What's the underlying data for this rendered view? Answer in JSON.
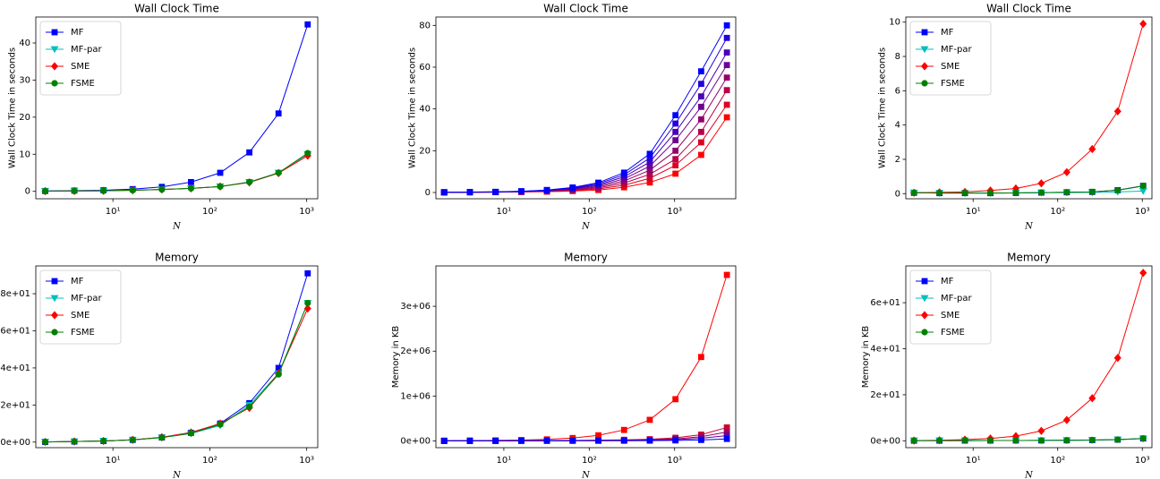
{
  "chart_data": [
    {
      "type": "line",
      "title": "Wall Clock Time",
      "xlabel": "N",
      "ylabel": "Wall Clock Time in seconds",
      "xscale": "log",
      "legend": "upper left",
      "x": [
        2,
        4,
        8,
        16,
        32,
        64,
        128,
        256,
        512,
        1024
      ],
      "xlim": [
        1.6,
        1300
      ],
      "xticks": [
        {
          "value": 10,
          "label": "10¹"
        },
        {
          "value": 100,
          "label": "10²"
        },
        {
          "value": 1000,
          "label": "10³"
        }
      ],
      "ylim": [
        -2,
        47
      ],
      "yticks": [
        0,
        10,
        20,
        30,
        40
      ],
      "series": [
        {
          "name": "MF",
          "color": "#0000ff",
          "marker": "square",
          "values": [
            0.1,
            0.2,
            0.3,
            0.6,
            1.2,
            2.5,
            5,
            10.5,
            21,
            45
          ]
        },
        {
          "name": "MF-par",
          "color": "#00bfbf",
          "marker": "tri-down",
          "values": [
            0.05,
            0.1,
            0.15,
            0.3,
            0.5,
            0.8,
            1.3,
            2.5,
            5,
            10
          ]
        },
        {
          "name": "SME",
          "color": "#ff0000",
          "marker": "diamond",
          "values": [
            0.05,
            0.1,
            0.15,
            0.3,
            0.5,
            0.8,
            1.3,
            2.4,
            4.9,
            9.6
          ]
        },
        {
          "name": "FSME",
          "color": "#008000",
          "marker": "circle",
          "values": [
            0.05,
            0.1,
            0.15,
            0.3,
            0.5,
            0.8,
            1.3,
            2.5,
            5,
            10.3
          ]
        }
      ]
    },
    {
      "type": "line",
      "title": "Wall Clock Time",
      "xlabel": "N",
      "ylabel": "Wall Clock Time in seconds",
      "xscale": "log",
      "x": [
        2,
        4,
        8,
        16,
        32,
        64,
        128,
        256,
        512,
        1024,
        2048,
        4096
      ],
      "xlim": [
        1.6,
        5200
      ],
      "xticks": [
        {
          "value": 10,
          "label": "10¹"
        },
        {
          "value": 100,
          "label": "10²"
        },
        {
          "value": 1000,
          "label": "10³"
        }
      ],
      "ylim": [
        -3,
        84
      ],
      "yticks": [
        0,
        20,
        40,
        60,
        80
      ],
      "series": [
        {
          "color": "#ff0000",
          "marker": "square",
          "values": [
            0.05,
            0.1,
            0.15,
            0.25,
            0.4,
            0.7,
            1.2,
            2.5,
            4.8,
            9,
            18,
            36
          ]
        },
        {
          "color": "#db0024",
          "marker": "square",
          "values": [
            0.06,
            0.11,
            0.17,
            0.3,
            0.51,
            0.94,
            1.7,
            3.5,
            6.8,
            13,
            24,
            42
          ]
        },
        {
          "color": "#b60049",
          "marker": "square",
          "values": [
            0.06,
            0.13,
            0.19,
            0.35,
            0.63,
            1.19,
            2.2,
            4.5,
            8.7,
            16,
            29,
            49
          ]
        },
        {
          "color": "#92006d",
          "marker": "square",
          "values": [
            0.07,
            0.14,
            0.21,
            0.4,
            0.74,
            1.43,
            2.7,
            5.5,
            10.7,
            20,
            35,
            55
          ]
        },
        {
          "color": "#6d0092",
          "marker": "square",
          "values": [
            0.08,
            0.16,
            0.24,
            0.45,
            0.86,
            1.67,
            3.2,
            6.5,
            12.6,
            25,
            41,
            61
          ]
        },
        {
          "color": "#4900b6",
          "marker": "square",
          "values": [
            0.09,
            0.17,
            0.26,
            0.5,
            0.97,
            1.91,
            3.7,
            7.5,
            14.6,
            29,
            46,
            67
          ]
        },
        {
          "color": "#2400db",
          "marker": "square",
          "values": [
            0.09,
            0.19,
            0.28,
            0.55,
            1.09,
            2.16,
            4.2,
            8.5,
            16.5,
            33,
            52,
            74
          ]
        },
        {
          "color": "#0000ff",
          "marker": "square",
          "values": [
            0.1,
            0.2,
            0.3,
            0.6,
            1.2,
            2.4,
            4.7,
            9.5,
            18.5,
            37,
            58,
            80
          ]
        }
      ]
    },
    {
      "type": "line",
      "title": "Wall Clock Time",
      "xlabel": "N",
      "ylabel": "Wall Clock Time in seconds",
      "xscale": "log",
      "legend": "upper left",
      "x": [
        2,
        4,
        8,
        16,
        32,
        64,
        128,
        256,
        512,
        1024
      ],
      "xlim": [
        1.6,
        1300
      ],
      "xticks": [
        {
          "value": 10,
          "label": "10¹"
        },
        {
          "value": 100,
          "label": "10²"
        },
        {
          "value": 1000,
          "label": "10³"
        }
      ],
      "ylim": [
        -0.3,
        10.3
      ],
      "yticks": [
        0,
        2,
        4,
        6,
        8,
        10
      ],
      "series": [
        {
          "name": "MF",
          "color": "#0000ff",
          "marker": "square",
          "values": [
            0.05,
            0.03,
            0.03,
            0.03,
            0.04,
            0.06,
            0.08,
            0.1,
            0.2,
            0.45
          ]
        },
        {
          "name": "MF-par",
          "color": "#00bfbf",
          "marker": "tri-down",
          "values": [
            0.05,
            0.03,
            0.03,
            0.03,
            0.04,
            0.05,
            0.06,
            0.07,
            0.1,
            0.15
          ]
        },
        {
          "name": "SME",
          "color": "#ff0000",
          "marker": "diamond",
          "values": [
            0.05,
            0.07,
            0.1,
            0.18,
            0.3,
            0.6,
            1.25,
            2.6,
            4.8,
            9.9
          ]
        },
        {
          "name": "FSME",
          "color": "#008000",
          "marker": "circle",
          "values": [
            0.05,
            0.03,
            0.03,
            0.03,
            0.04,
            0.06,
            0.08,
            0.1,
            0.2,
            0.45
          ]
        }
      ]
    },
    {
      "type": "line",
      "title": "Memory",
      "xlabel": "N",
      "ylabel": "Memory in KB",
      "xscale": "log",
      "legend": "upper left",
      "x": [
        2,
        4,
        8,
        16,
        32,
        64,
        128,
        256,
        512,
        1024
      ],
      "xlim": [
        1.6,
        1300
      ],
      "xticks": [
        {
          "value": 10,
          "label": "10¹"
        },
        {
          "value": 100,
          "label": "10²"
        },
        {
          "value": 1000,
          "label": "10³"
        }
      ],
      "ylim": [
        -3,
        95
      ],
      "yticks": [
        {
          "value": 0,
          "label": "0e+00"
        },
        {
          "value": 20,
          "label": "2e+01"
        },
        {
          "value": 40,
          "label": "4e+01"
        },
        {
          "value": 60,
          "label": "6e+01"
        },
        {
          "value": 80,
          "label": "8e+01"
        }
      ],
      "series": [
        {
          "name": "MF",
          "color": "#0000ff",
          "marker": "square",
          "values": [
            0.1,
            0.3,
            0.6,
            1.2,
            2.5,
            5,
            10,
            21,
            40,
            91
          ]
        },
        {
          "name": "MF-par",
          "color": "#00bfbf",
          "marker": "tri-down",
          "values": [
            0.1,
            0.3,
            0.6,
            1.2,
            2.4,
            4.6,
            9,
            20,
            37,
            75
          ]
        },
        {
          "name": "SME",
          "color": "#ff0000",
          "marker": "diamond",
          "values": [
            0.1,
            0.3,
            0.6,
            1.2,
            2.6,
            5.2,
            10,
            18.5,
            37,
            72
          ]
        },
        {
          "name": "FSME",
          "color": "#008000",
          "marker": "circle",
          "values": [
            0.1,
            0.3,
            0.6,
            1.2,
            2.4,
            4.8,
            9.5,
            19,
            36.5,
            75
          ]
        }
      ]
    },
    {
      "type": "line",
      "title": "Memory",
      "xlabel": "N",
      "ylabel": "Memory in KB",
      "xscale": "log",
      "x": [
        2,
        4,
        8,
        16,
        32,
        64,
        128,
        256,
        512,
        1024,
        2048,
        4096
      ],
      "xlim": [
        1.6,
        5200
      ],
      "xticks": [
        {
          "value": 10,
          "label": "10¹"
        },
        {
          "value": 100,
          "label": "10²"
        },
        {
          "value": 1000,
          "label": "10³"
        }
      ],
      "ylim": [
        -150000,
        3900000
      ],
      "yticks": [
        {
          "value": 0,
          "label": "0e+00"
        },
        {
          "value": 1000000,
          "label": "1e+06"
        },
        {
          "value": 2000000,
          "label": "2e+06"
        },
        {
          "value": 3000000,
          "label": "3e+06"
        }
      ],
      "series": [
        {
          "color": "#ff0000",
          "marker": "square",
          "values": [
            5000,
            8000,
            12000,
            20000,
            35000,
            65000,
            125000,
            245000,
            470000,
            930000,
            1870000,
            3700000
          ]
        },
        {
          "color": "#cc0033",
          "marker": "square",
          "values": [
            3000,
            4000,
            5000,
            7000,
            9000,
            12000,
            17000,
            25000,
            38000,
            70000,
            140000,
            300000
          ]
        },
        {
          "color": "#990066",
          "marker": "square",
          "values": [
            2000,
            3000,
            4000,
            5000,
            7000,
            9000,
            12000,
            17000,
            25000,
            45000,
            95000,
            200000
          ]
        },
        {
          "color": "#660099",
          "marker": "square",
          "values": [
            2000,
            2500,
            3000,
            4000,
            5000,
            6000,
            8000,
            11000,
            16000,
            28000,
            60000,
            120000
          ]
        },
        {
          "color": "#0000ff",
          "marker": "square",
          "values": [
            1000,
            1500,
            2000,
            2500,
            3000,
            3500,
            4000,
            5000,
            7000,
            12000,
            22000,
            45000
          ]
        }
      ]
    },
    {
      "type": "line",
      "title": "Memory",
      "xlabel": "N",
      "ylabel": "Memory in KB",
      "xscale": "log",
      "legend": "upper left",
      "x": [
        2,
        4,
        8,
        16,
        32,
        64,
        128,
        256,
        512,
        1024
      ],
      "xlim": [
        1.6,
        1300
      ],
      "xticks": [
        {
          "value": 10,
          "label": "10¹"
        },
        {
          "value": 100,
          "label": "10²"
        },
        {
          "value": 1000,
          "label": "10³"
        }
      ],
      "ylim": [
        -3,
        76
      ],
      "yticks": [
        {
          "value": 0,
          "label": "0e+00"
        },
        {
          "value": 20,
          "label": "2e+01"
        },
        {
          "value": 40,
          "label": "4e+01"
        },
        {
          "value": 60,
          "label": "6e+01"
        }
      ],
      "series": [
        {
          "name": "MF",
          "color": "#0000ff",
          "marker": "square",
          "values": [
            0.05,
            0.06,
            0.08,
            0.1,
            0.12,
            0.15,
            0.2,
            0.3,
            0.5,
            1
          ]
        },
        {
          "name": "MF-par",
          "color": "#00bfbf",
          "marker": "tri-down",
          "values": [
            0.05,
            0.06,
            0.08,
            0.1,
            0.12,
            0.15,
            0.2,
            0.3,
            0.5,
            0.9
          ]
        },
        {
          "name": "SME",
          "color": "#ff0000",
          "marker": "diamond",
          "values": [
            0.05,
            0.2,
            0.5,
            1,
            2,
            4.3,
            9,
            18.5,
            36,
            73
          ]
        },
        {
          "name": "FSME",
          "color": "#008000",
          "marker": "circle",
          "values": [
            0.05,
            0.06,
            0.08,
            0.1,
            0.12,
            0.15,
            0.2,
            0.3,
            0.5,
            1
          ]
        }
      ]
    }
  ]
}
